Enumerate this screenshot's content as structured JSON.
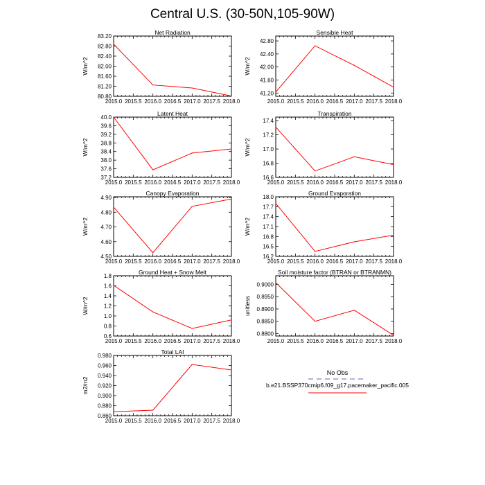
{
  "figure_title": "Central U.S. (30-50N,105-90W)",
  "colors": {
    "model_line": "#ff0000",
    "obs_line": "#9999cc",
    "axis": "#000000"
  },
  "legend": {
    "obs_label": "No Obs",
    "model_label": "b.e21.BSSP370cmip6.f09_g17.pacemaker_pacific.005"
  },
  "chart_data": [
    {
      "type": "line",
      "title": "Net Radiation",
      "ylabel": "W/m^2",
      "x": [
        2015.0,
        2016.0,
        2017.0,
        2018.0
      ],
      "values": [
        82.88,
        81.25,
        81.13,
        80.81
      ],
      "xlim": [
        2015.0,
        2018.0
      ],
      "ylim": [
        80.8,
        83.2
      ],
      "yticks": [
        "80.80",
        "81.20",
        "81.60",
        "82.00",
        "82.40",
        "82.80",
        "83.20"
      ],
      "xticks": [
        "2015.0",
        "2015.5",
        "2016.0",
        "2016.5",
        "2017.0",
        "2017.5",
        "2018.0"
      ]
    },
    {
      "type": "line",
      "title": "Sensible Heat",
      "ylabel": "W/m^2",
      "x": [
        2015.0,
        2016.0,
        2017.0,
        2018.0
      ],
      "values": [
        41.23,
        42.65,
        42.05,
        41.38
      ],
      "xlim": [
        2015.0,
        2018.0
      ],
      "ylim": [
        41.1,
        42.95
      ],
      "yticks": [
        "41.20",
        "41.60",
        "42.00",
        "42.40",
        "42.80"
      ],
      "xticks": [
        "2015.0",
        "2015.5",
        "2016.0",
        "2016.5",
        "2017.0",
        "2017.5",
        "2018.0"
      ]
    },
    {
      "type": "line",
      "title": "Latent Heat",
      "ylabel": "W/m^2",
      "x": [
        2015.0,
        2016.0,
        2017.0,
        2018.0
      ],
      "values": [
        40.0,
        37.55,
        38.33,
        38.52
      ],
      "xlim": [
        2015.0,
        2018.0
      ],
      "ylim": [
        37.2,
        40.0
      ],
      "yticks": [
        "37.2",
        "37.6",
        "38.0",
        "38.4",
        "38.8",
        "39.2",
        "39.6",
        "40.0"
      ],
      "xticks": [
        "2015.0",
        "2015.5",
        "2016.0",
        "2016.5",
        "2017.0",
        "2017.5",
        "2018.0"
      ]
    },
    {
      "type": "line",
      "title": "Transpiration",
      "ylabel": "W/m^2",
      "x": [
        2015.0,
        2016.0,
        2017.0,
        2018.0
      ],
      "values": [
        17.31,
        16.69,
        16.89,
        16.78
      ],
      "xlim": [
        2015.0,
        2018.0
      ],
      "ylim": [
        16.6,
        17.45
      ],
      "yticks": [
        "16.6",
        "16.8",
        "17.0",
        "17.2",
        "17.4"
      ],
      "xticks": [
        "2015.0",
        "2015.5",
        "2016.0",
        "2016.5",
        "2017.0",
        "2017.5",
        "2018.0"
      ]
    },
    {
      "type": "line",
      "title": "Canopy Evaporation",
      "ylabel": "W/m^2",
      "x": [
        2015.0,
        2016.0,
        2017.0,
        2018.0
      ],
      "values": [
        4.835,
        4.525,
        4.84,
        4.89
      ],
      "xlim": [
        2015.0,
        2018.0
      ],
      "ylim": [
        4.5,
        4.905
      ],
      "yticks": [
        "4.50",
        "4.60",
        "4.70",
        "4.80",
        "4.90"
      ],
      "xticks": [
        "2015.0",
        "2015.5",
        "2016.0",
        "2016.5",
        "2017.0",
        "2017.5",
        "2018.0"
      ]
    },
    {
      "type": "line",
      "title": "Ground Evaporation",
      "ylabel": "W/m^2",
      "x": [
        2015.0,
        2016.0,
        2017.0,
        2018.0
      ],
      "values": [
        17.8,
        16.35,
        16.64,
        16.84
      ],
      "xlim": [
        2015.0,
        2018.0
      ],
      "ylim": [
        16.2,
        18.0
      ],
      "yticks": [
        "16.2",
        "16.5",
        "16.8",
        "17.1",
        "17.4",
        "17.7",
        "18.0"
      ],
      "xticks": [
        "2015.0",
        "2015.5",
        "2016.0",
        "2016.5",
        "2017.0",
        "2017.5",
        "2018.0"
      ]
    },
    {
      "type": "line",
      "title": "Ground Heat + Snow Melt",
      "ylabel": "W/m^2",
      "x": [
        2015.0,
        2016.0,
        2017.0,
        2018.0
      ],
      "values": [
        1.61,
        1.08,
        0.75,
        0.92
      ],
      "xlim": [
        2015.0,
        2018.0
      ],
      "ylim": [
        0.6,
        1.8
      ],
      "yticks": [
        "0.6",
        "0.8",
        "1.0",
        "1.2",
        "1.4",
        "1.6",
        "1.8"
      ],
      "xticks": [
        "2015.0",
        "2015.5",
        "2016.0",
        "2016.5",
        "2017.0",
        "2017.5",
        "2018.0"
      ]
    },
    {
      "type": "line",
      "title": "Soil moisture factor (BTRAN or BTRANMN)",
      "ylabel": "unitless",
      "x": [
        2015.0,
        2016.0,
        2017.0,
        2018.0
      ],
      "values": [
        0.9007,
        0.885,
        0.8895,
        0.8793
      ],
      "xlim": [
        2015.0,
        2018.0
      ],
      "ylim": [
        0.879,
        0.9035
      ],
      "yticks": [
        "0.8800",
        "0.8850",
        "0.8900",
        "0.8950",
        "0.9000"
      ],
      "xticks": [
        "2015.0",
        "2015.5",
        "2016.0",
        "2016.5",
        "2017.0",
        "2017.5",
        "2018.0"
      ]
    },
    {
      "type": "line",
      "title": "Total LAI",
      "ylabel": "m2/m2",
      "x": [
        2015.0,
        2016.0,
        2017.0,
        2018.0
      ],
      "values": [
        0.868,
        0.871,
        0.962,
        0.951
      ],
      "xlim": [
        2015.0,
        2018.0
      ],
      "ylim": [
        0.86,
        0.98
      ],
      "yticks": [
        "0.860",
        "0.880",
        "0.900",
        "0.920",
        "0.940",
        "0.960",
        "0.980"
      ],
      "xticks": [
        "2015.0",
        "2015.5",
        "2016.0",
        "2016.5",
        "2017.0",
        "2017.5",
        "2018.0"
      ]
    }
  ]
}
